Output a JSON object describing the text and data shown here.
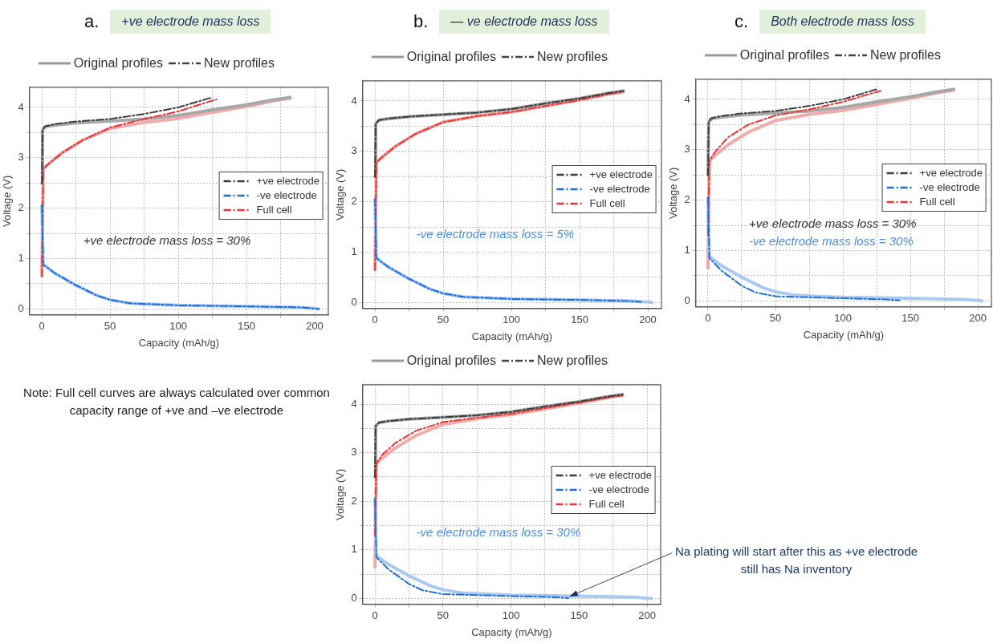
{
  "chart_data": [
    {
      "type": "line",
      "title": "a.",
      "subtitle": "+ve electrode mass loss",
      "xlabel": "Capacity (mAh/g)",
      "ylabel": "Voltage (V)",
      "xlim": [
        -9,
        210
      ],
      "ylim": [
        -0.12,
        4.4
      ],
      "xticks": [
        0,
        {
          "value": 25,
          "label": null
        },
        50,
        {
          "value": 75,
          "label": null
        },
        100,
        {
          "value": 125,
          "label": null
        },
        150,
        {
          "value": 175,
          "label": null
        },
        200
      ],
      "yticks": [
        0,
        {
          "value": 0.5,
          "label": null
        },
        1,
        {
          "value": 1.5,
          "label": null
        },
        2,
        {
          "value": 2.5,
          "label": null
        },
        3,
        {
          "value": 3.5,
          "label": null
        },
        4
      ],
      "grid": true,
      "legend": "right",
      "marker": "none",
      "annotations": [
        "Original profiles",
        "New profiles",
        "+ve electrode mass loss = 30%"
      ],
      "series": [
        {
          "color": "#a8a8a8",
          "line_style": "solid",
          "x": [
            0,
            0.5,
            3,
            10,
            25,
            50,
            75,
            100,
            125,
            150,
            170,
            182
          ],
          "values": [
            2.5,
            3.55,
            3.62,
            3.65,
            3.69,
            3.73,
            3.77,
            3.84,
            3.95,
            4.05,
            4.15,
            4.2
          ]
        },
        {
          "color": "#a9c9f2",
          "line_style": "solid",
          "x": [
            0,
            1,
            10,
            25,
            40,
            50,
            65,
            100,
            150,
            190,
            203
          ],
          "values": [
            2.05,
            0.88,
            0.7,
            0.47,
            0.27,
            0.18,
            0.11,
            0.07,
            0.05,
            0.03,
            0
          ]
        },
        {
          "color": "#f2abab",
          "line_style": "solid",
          "x": [
            0,
            1,
            5,
            15,
            30,
            50,
            75,
            100,
            125,
            150,
            170,
            182
          ],
          "values": [
            0.65,
            2.78,
            2.88,
            3.1,
            3.35,
            3.58,
            3.7,
            3.78,
            3.9,
            4.02,
            4.13,
            4.18
          ]
        },
        {
          "name": "+ve electrode",
          "color": "#3c3c3c",
          "line_style": "dashdot",
          "x": [
            0,
            0.5,
            2,
            10,
            25,
            50,
            75,
            100,
            115,
            125
          ],
          "values": [
            2.5,
            3.55,
            3.62,
            3.67,
            3.72,
            3.77,
            3.87,
            4.0,
            4.12,
            4.2
          ]
        },
        {
          "name": "-ve electrode",
          "color": "#1e6ee0",
          "line_style": "dashdot",
          "x": [
            0,
            1,
            10,
            25,
            40,
            50,
            65,
            100,
            150,
            190,
            203
          ],
          "values": [
            2.05,
            0.88,
            0.7,
            0.47,
            0.27,
            0.18,
            0.11,
            0.07,
            0.05,
            0.03,
            0
          ]
        },
        {
          "name": "Full cell",
          "color": "#ee3333",
          "line_style": "dashdot",
          "x": [
            0,
            1,
            5,
            15,
            30,
            50,
            75,
            100,
            115,
            128
          ],
          "values": [
            0.65,
            2.78,
            2.88,
            3.1,
            3.35,
            3.6,
            3.77,
            3.92,
            4.05,
            4.16
          ]
        }
      ]
    },
    {
      "type": "line",
      "title": "b.",
      "subtitle": "— ve electrode mass loss",
      "xlabel": "Capacity (mAh/g)",
      "ylabel": "Voltage (V)",
      "xlim": [
        -9,
        210
      ],
      "ylim": [
        -0.12,
        4.4
      ],
      "xticks": [
        0,
        {
          "value": 25,
          "label": null
        },
        50,
        {
          "value": 75,
          "label": null
        },
        100,
        {
          "value": 125,
          "label": null
        },
        150,
        {
          "value": 175,
          "label": null
        },
        200
      ],
      "yticks": [
        0,
        {
          "value": 0.5,
          "label": null
        },
        1,
        {
          "value": 1.5,
          "label": null
        },
        2,
        {
          "value": 2.5,
          "label": null
        },
        3,
        {
          "value": 3.5,
          "label": null
        },
        4
      ],
      "grid": true,
      "legend": "right",
      "marker": "none",
      "annotations": [
        "Original profiles",
        "New profiles",
        "-ve electrode mass loss = 5%"
      ],
      "series": [
        {
          "color": "#a8a8a8",
          "line_style": "solid",
          "x": [
            0,
            0.5,
            3,
            10,
            25,
            50,
            75,
            100,
            125,
            150,
            170,
            182
          ],
          "values": [
            2.5,
            3.55,
            3.62,
            3.65,
            3.69,
            3.73,
            3.77,
            3.84,
            3.95,
            4.05,
            4.15,
            4.2
          ]
        },
        {
          "color": "#a9c9f2",
          "line_style": "solid",
          "x": [
            0,
            1,
            10,
            25,
            40,
            50,
            65,
            100,
            150,
            190,
            203
          ],
          "values": [
            2.05,
            0.88,
            0.7,
            0.47,
            0.27,
            0.18,
            0.11,
            0.07,
            0.05,
            0.03,
            0
          ]
        },
        {
          "color": "#f2abab",
          "line_style": "solid",
          "x": [
            0,
            1,
            5,
            15,
            30,
            50,
            75,
            100,
            125,
            150,
            170,
            182
          ],
          "values": [
            0.65,
            2.78,
            2.88,
            3.1,
            3.35,
            3.58,
            3.7,
            3.78,
            3.9,
            4.02,
            4.13,
            4.18
          ]
        },
        {
          "name": "+ve electrode",
          "color": "#3c3c3c",
          "line_style": "dashdot",
          "x": [
            0,
            0.5,
            3,
            10,
            25,
            50,
            75,
            100,
            125,
            150,
            170,
            182
          ],
          "values": [
            2.5,
            3.55,
            3.62,
            3.65,
            3.69,
            3.73,
            3.77,
            3.84,
            3.95,
            4.05,
            4.15,
            4.2
          ]
        },
        {
          "name": "-ve electrode",
          "color": "#1e6ee0",
          "line_style": "dashdot",
          "x": [
            0,
            1,
            10,
            25,
            40,
            50,
            65,
            100,
            150,
            185,
            195
          ],
          "values": [
            2.05,
            0.88,
            0.7,
            0.47,
            0.27,
            0.18,
            0.11,
            0.07,
            0.05,
            0.03,
            0.01
          ]
        },
        {
          "name": "Full cell",
          "color": "#ee3333",
          "line_style": "dashdot",
          "x": [
            0,
            1,
            5,
            15,
            30,
            50,
            75,
            100,
            125,
            150,
            170,
            182
          ],
          "values": [
            0.65,
            2.78,
            2.88,
            3.1,
            3.35,
            3.58,
            3.7,
            3.78,
            3.9,
            4.02,
            4.13,
            4.18
          ]
        }
      ]
    },
    {
      "type": "line",
      "title": "c.",
      "subtitle": "Both electrode mass loss",
      "xlabel": "Capacity (mAh/g)",
      "ylabel": "Voltage (V)",
      "xlim": [
        -9,
        210
      ],
      "ylim": [
        -0.12,
        4.4
      ],
      "xticks": [
        0,
        {
          "value": 25,
          "label": null
        },
        50,
        {
          "value": 75,
          "label": null
        },
        100,
        {
          "value": 125,
          "label": null
        },
        150,
        {
          "value": 175,
          "label": null
        },
        200
      ],
      "yticks": [
        0,
        {
          "value": 0.5,
          "label": null
        },
        1,
        {
          "value": 1.5,
          "label": null
        },
        2,
        {
          "value": 2.5,
          "label": null
        },
        3,
        {
          "value": 3.5,
          "label": null
        },
        4
      ],
      "grid": true,
      "legend": "right",
      "marker": "none",
      "annotations": [
        "Original profiles",
        "New profiles",
        "+ve electrode mass loss = 30%",
        "-ve electrode mass loss = 30%"
      ],
      "series": [
        {
          "color": "#a8a8a8",
          "line_style": "solid",
          "x": [
            0,
            0.5,
            3,
            10,
            25,
            50,
            75,
            100,
            125,
            150,
            170,
            182
          ],
          "values": [
            2.5,
            3.55,
            3.62,
            3.65,
            3.69,
            3.73,
            3.77,
            3.84,
            3.95,
            4.05,
            4.15,
            4.2
          ]
        },
        {
          "color": "#a9c9f2",
          "line_style": "solid",
          "x": [
            0,
            1,
            10,
            25,
            40,
            50,
            65,
            100,
            150,
            190,
            203
          ],
          "values": [
            2.05,
            0.88,
            0.7,
            0.47,
            0.27,
            0.18,
            0.11,
            0.07,
            0.05,
            0.03,
            0
          ]
        },
        {
          "color": "#f2abab",
          "line_style": "solid",
          "x": [
            0,
            1,
            5,
            15,
            30,
            50,
            75,
            100,
            125,
            150,
            170,
            182
          ],
          "values": [
            0.65,
            2.78,
            2.88,
            3.1,
            3.35,
            3.58,
            3.7,
            3.78,
            3.9,
            4.02,
            4.13,
            4.18
          ]
        },
        {
          "name": "+ve electrode",
          "color": "#3c3c3c",
          "line_style": "dashdot",
          "x": [
            0,
            0.5,
            2,
            10,
            25,
            50,
            75,
            100,
            115,
            125
          ],
          "values": [
            2.5,
            3.55,
            3.62,
            3.67,
            3.72,
            3.77,
            3.87,
            4.0,
            4.12,
            4.2
          ]
        },
        {
          "name": "-ve electrode",
          "color": "#1e6ee0",
          "line_style": "dashdot",
          "x": [
            0,
            1,
            10,
            25,
            35,
            50,
            75,
            100,
            130,
            142
          ],
          "values": [
            2.05,
            0.85,
            0.6,
            0.3,
            0.17,
            0.09,
            0.07,
            0.05,
            0.03,
            0.01
          ]
        },
        {
          "name": "Full cell",
          "color": "#ee3333",
          "line_style": "dashdot",
          "x": [
            0,
            1,
            5,
            15,
            30,
            50,
            75,
            100,
            115,
            128
          ],
          "values": [
            1.3,
            2.78,
            2.95,
            3.25,
            3.5,
            3.68,
            3.8,
            3.95,
            4.07,
            4.17
          ]
        }
      ]
    },
    {
      "type": "line",
      "xlabel": "Capacity (mAh/g)",
      "ylabel": "Voltage (V)",
      "xlim": [
        -9,
        210
      ],
      "ylim": [
        -0.12,
        4.4
      ],
      "xticks": [
        0,
        {
          "value": 25,
          "label": null
        },
        50,
        {
          "value": 75,
          "label": null
        },
        100,
        {
          "value": 125,
          "label": null
        },
        150,
        {
          "value": 175,
          "label": null
        },
        200
      ],
      "yticks": [
        0,
        {
          "value": 0.5,
          "label": null
        },
        1,
        {
          "value": 1.5,
          "label": null
        },
        2,
        {
          "value": 2.5,
          "label": null
        },
        3,
        {
          "value": 3.5,
          "label": null
        },
        4
      ],
      "grid": true,
      "legend": "right",
      "marker": "none",
      "annotations": [
        "Original profiles",
        "New profiles",
        "-ve electrode mass loss = 30%",
        "Note: Full cell curves are always calculated over common capacity range of +ve and –ve electrode",
        {
          "text": "Na plating will start after this as +ve electrode still has Na inventory",
          "x": 142,
          "y": 0.03
        }
      ],
      "series": [
        {
          "color": "#a8a8a8",
          "line_style": "solid",
          "x": [
            0,
            0.5,
            3,
            10,
            25,
            50,
            75,
            100,
            125,
            150,
            170,
            182
          ],
          "values": [
            2.5,
            3.55,
            3.62,
            3.65,
            3.69,
            3.73,
            3.77,
            3.84,
            3.95,
            4.05,
            4.15,
            4.2
          ]
        },
        {
          "color": "#a9c9f2",
          "line_style": "solid",
          "x": [
            0,
            1,
            10,
            25,
            40,
            50,
            65,
            100,
            150,
            190,
            203
          ],
          "values": [
            2.05,
            0.88,
            0.7,
            0.47,
            0.27,
            0.18,
            0.11,
            0.07,
            0.05,
            0.03,
            0
          ]
        },
        {
          "color": "#f2abab",
          "line_style": "solid",
          "x": [
            0,
            1,
            5,
            15,
            30,
            50,
            75,
            100,
            125,
            150,
            170,
            182
          ],
          "values": [
            0.65,
            2.78,
            2.88,
            3.1,
            3.35,
            3.58,
            3.7,
            3.78,
            3.9,
            4.02,
            4.13,
            4.18
          ]
        },
        {
          "name": "+ve electrode",
          "color": "#3c3c3c",
          "line_style": "dashdot",
          "x": [
            0,
            0.5,
            3,
            10,
            25,
            50,
            75,
            100,
            125,
            150,
            170,
            182
          ],
          "values": [
            2.5,
            3.55,
            3.62,
            3.65,
            3.69,
            3.73,
            3.77,
            3.84,
            3.95,
            4.05,
            4.15,
            4.2
          ]
        },
        {
          "name": "-ve electrode",
          "color": "#1e6ee0",
          "line_style": "dashdot",
          "x": [
            0,
            1,
            10,
            25,
            35,
            50,
            75,
            100,
            130,
            142
          ],
          "values": [
            2.05,
            0.85,
            0.6,
            0.3,
            0.17,
            0.09,
            0.07,
            0.05,
            0.03,
            0.01
          ]
        },
        {
          "name": "Full cell",
          "color": "#ee3333",
          "line_style": "dashdot",
          "x": [
            0,
            1,
            5,
            15,
            30,
            50,
            75,
            100,
            125,
            150,
            170,
            182
          ],
          "values": [
            1.3,
            2.78,
            2.95,
            3.2,
            3.45,
            3.63,
            3.72,
            3.8,
            3.92,
            4.03,
            4.13,
            4.18
          ]
        }
      ]
    }
  ]
}
